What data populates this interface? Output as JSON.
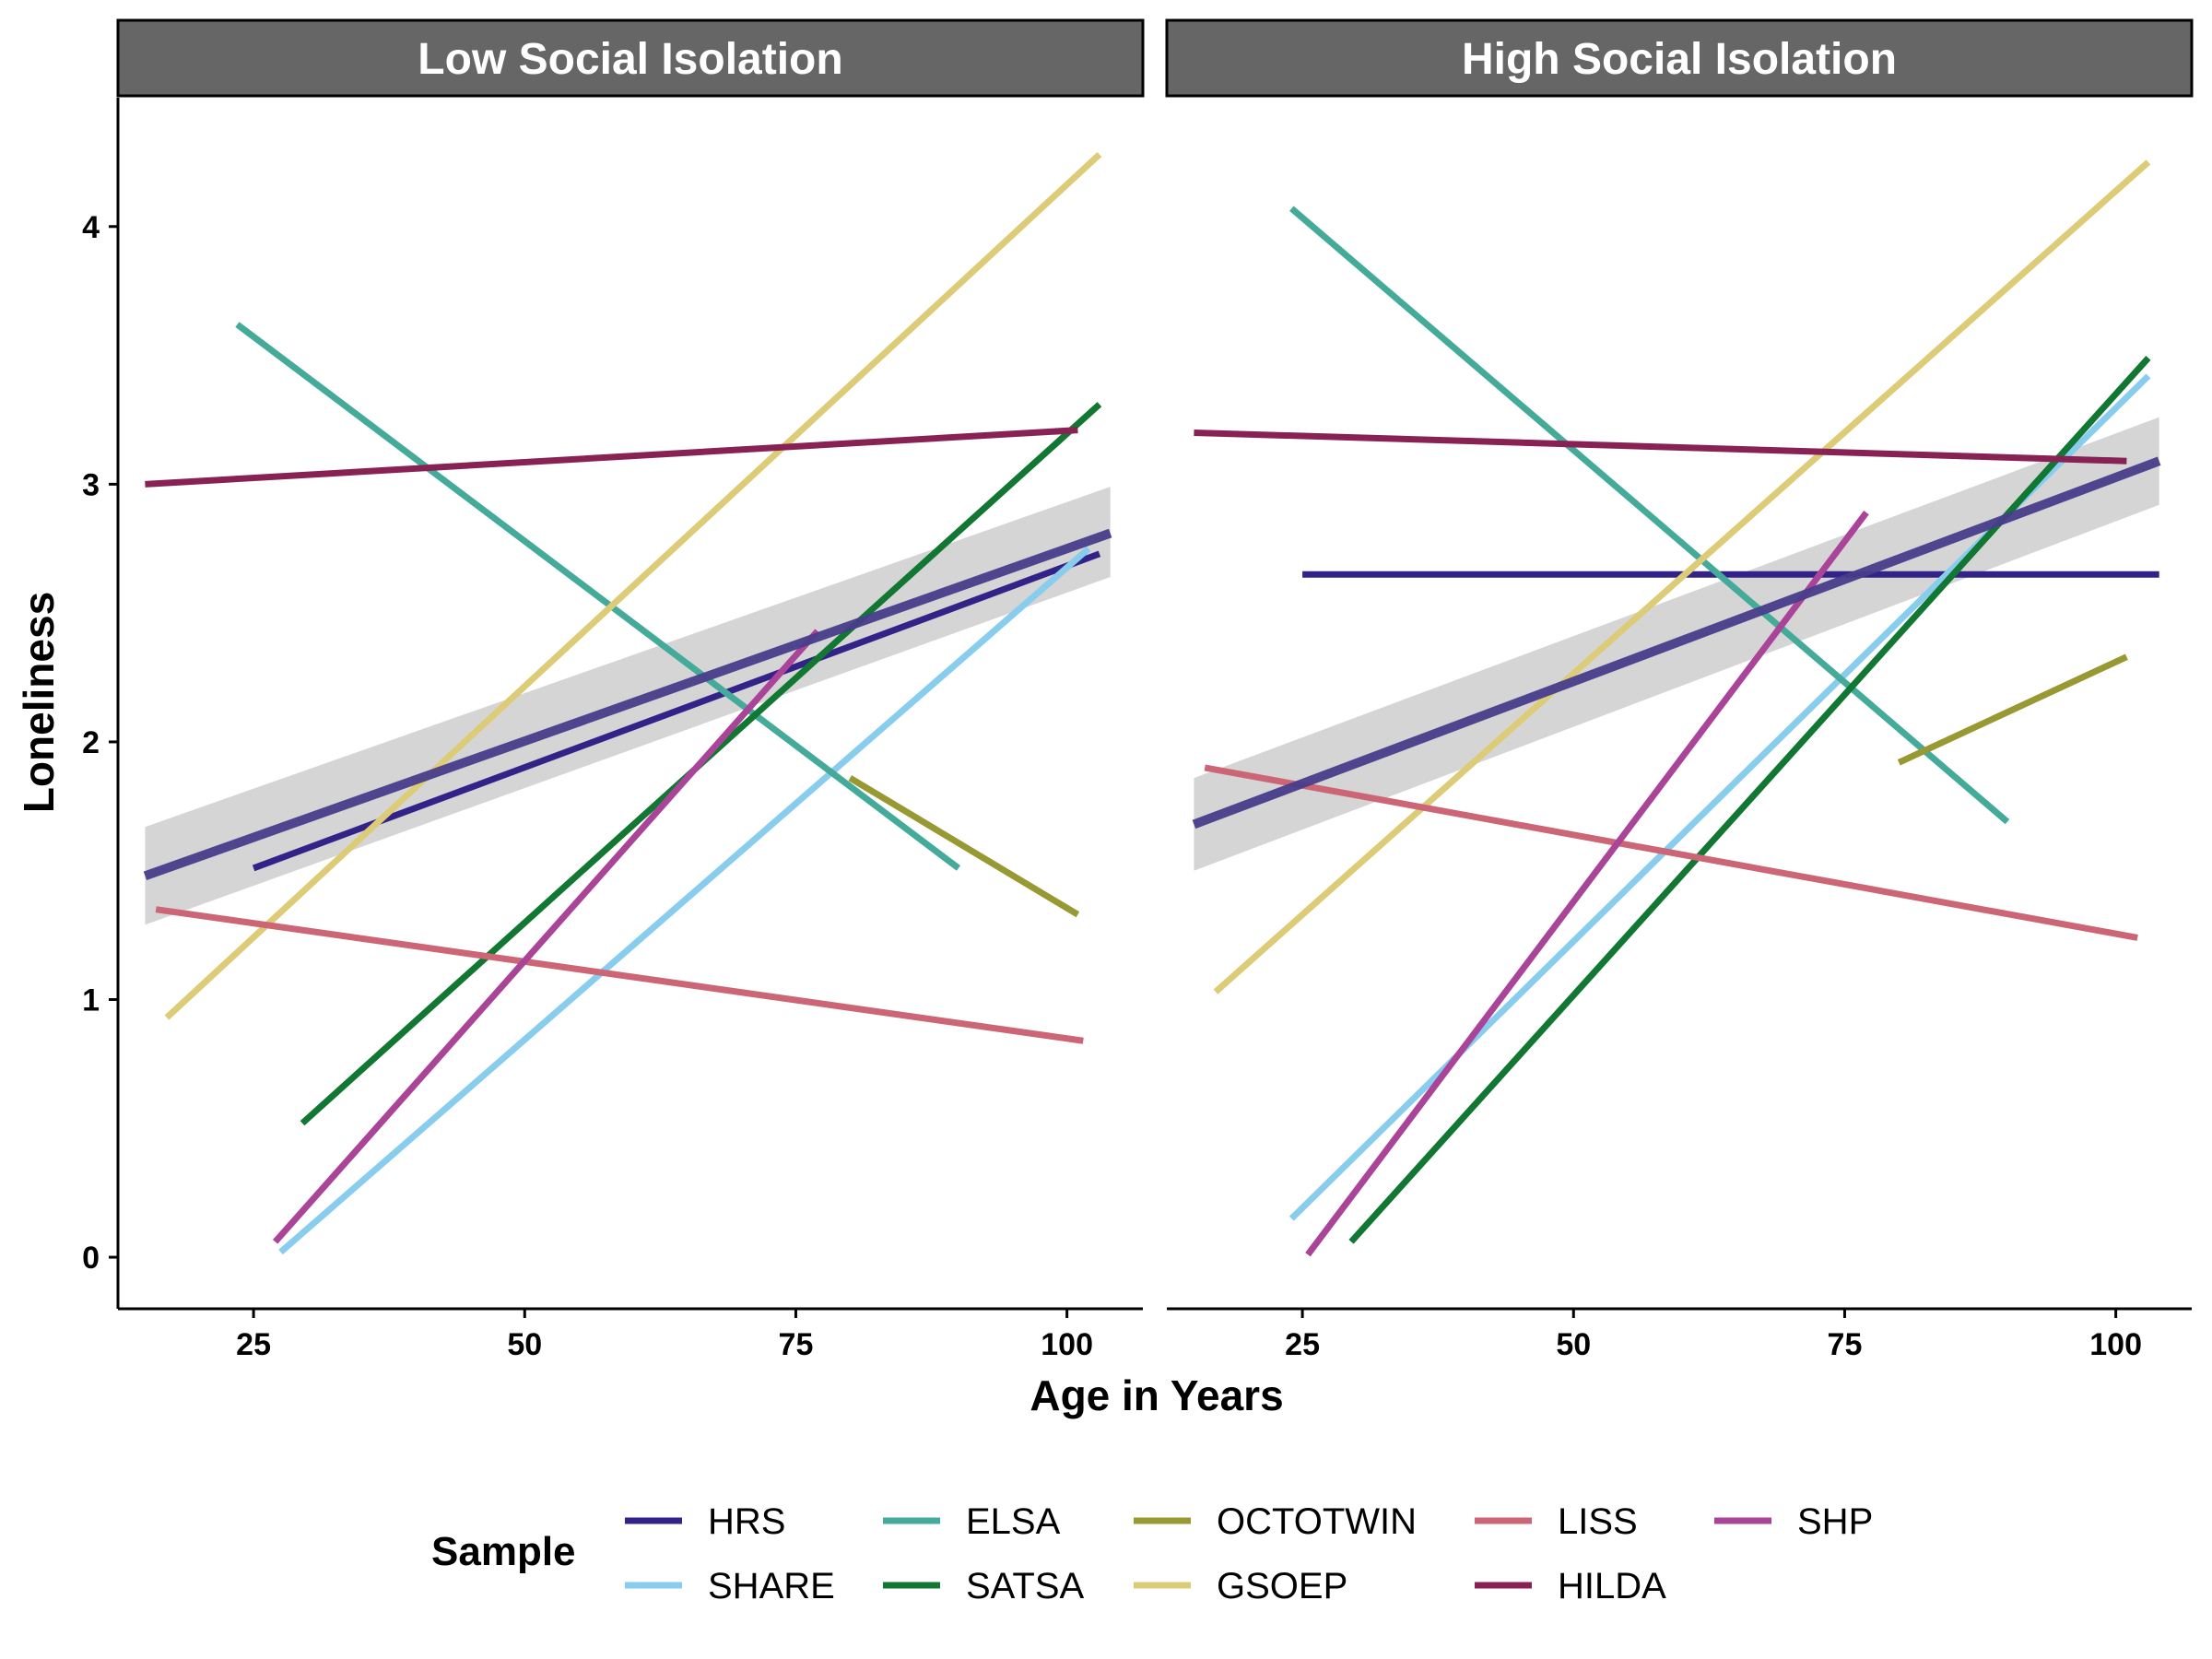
{
  "chart_data": {
    "type": "line",
    "xlabel": "Age in Years",
    "ylabel": "Loneliness",
    "xlim": [
      12.5,
      107
    ],
    "ylim": [
      -0.2,
      4.5
    ],
    "xticks": [
      25,
      50,
      75,
      100
    ],
    "yticks": [
      0,
      1,
      2,
      3,
      4
    ],
    "grid": false,
    "legend": {
      "title": "Sample",
      "position": "bottom",
      "entries": [
        "HRS",
        "SHARE",
        "ELSA",
        "SATSA",
        "OCTOTWIN",
        "GSOEP",
        "LISS",
        "HILDA",
        "SHP"
      ]
    },
    "colors": {
      "HRS": "#332288",
      "SHARE": "#88CCEE",
      "ELSA": "#44AA99",
      "SATSA": "#117733",
      "OCTOTWIN": "#999933",
      "GSOEP": "#DDCC77",
      "LISS": "#CC6677",
      "HILDA": "#882255",
      "SHP": "#AA4499",
      "overall": "#483D8B",
      "ribbon": "#BEBEBE",
      "strip": "#666666"
    },
    "panels": [
      {
        "title": "Low Social Isolation",
        "series": [
          {
            "name": "HRS",
            "x": [
              25,
              103
            ],
            "y": [
              1.51,
              2.73
            ]
          },
          {
            "name": "SHARE",
            "x": [
              27.5,
              102
            ],
            "y": [
              0.02,
              2.75
            ]
          },
          {
            "name": "ELSA",
            "x": [
              23.5,
              90
            ],
            "y": [
              3.62,
              1.51
            ]
          },
          {
            "name": "SATSA",
            "x": [
              29.5,
              103
            ],
            "y": [
              0.52,
              3.31
            ]
          },
          {
            "name": "OCTOTWIN",
            "x": [
              80,
              101
            ],
            "y": [
              1.86,
              1.33
            ]
          },
          {
            "name": "GSOEP",
            "x": [
              17,
              103
            ],
            "y": [
              0.93,
              4.28
            ]
          },
          {
            "name": "LISS",
            "x": [
              16,
              101.5
            ],
            "y": [
              1.35,
              0.84
            ]
          },
          {
            "name": "HILDA",
            "x": [
              15,
              101
            ],
            "y": [
              3.0,
              3.21
            ]
          },
          {
            "name": "SHP",
            "x": [
              27,
              77
            ],
            "y": [
              0.06,
              2.43
            ]
          }
        ],
        "overall": {
          "x": [
            15,
            104
          ],
          "y": [
            1.48,
            2.81
          ],
          "lower": [
            1.29,
            2.64
          ],
          "upper": [
            1.67,
            2.99
          ]
        }
      },
      {
        "title": "High Social Isolation",
        "series": [
          {
            "name": "HRS",
            "x": [
              25,
              104
            ],
            "y": [
              2.65,
              2.65
            ]
          },
          {
            "name": "SHARE",
            "x": [
              24,
              103
            ],
            "y": [
              0.15,
              3.42
            ]
          },
          {
            "name": "ELSA",
            "x": [
              24,
              90
            ],
            "y": [
              4.07,
              1.69
            ]
          },
          {
            "name": "SATSA",
            "x": [
              29.5,
              103
            ],
            "y": [
              0.06,
              3.49
            ]
          },
          {
            "name": "OCTOTWIN",
            "x": [
              80,
              101
            ],
            "y": [
              1.92,
              2.33
            ]
          },
          {
            "name": "GSOEP",
            "x": [
              17,
              103
            ],
            "y": [
              1.03,
              4.25
            ]
          },
          {
            "name": "LISS",
            "x": [
              16,
              102
            ],
            "y": [
              1.9,
              1.24
            ]
          },
          {
            "name": "HILDA",
            "x": [
              15,
              101
            ],
            "y": [
              3.2,
              3.09
            ]
          },
          {
            "name": "SHP",
            "x": [
              25.5,
              77
            ],
            "y": [
              0.01,
              2.89
            ]
          }
        ],
        "overall": {
          "x": [
            15,
            104
          ],
          "y": [
            1.68,
            3.09
          ],
          "lower": [
            1.5,
            2.92
          ],
          "upper": [
            1.86,
            3.26
          ]
        }
      }
    ]
  }
}
